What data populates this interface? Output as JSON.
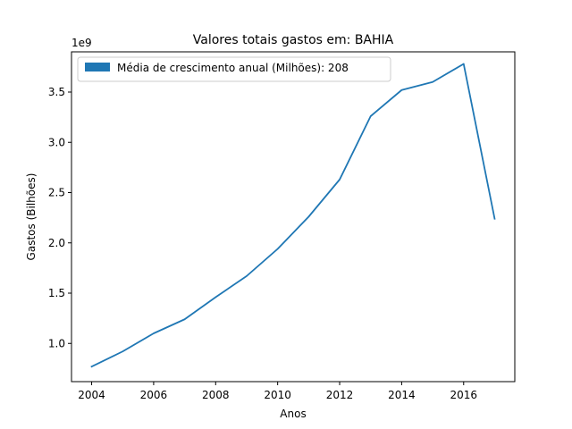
{
  "chart_data": {
    "type": "line",
    "title": "Valores totais gastos em: BAHIA",
    "xlabel": "Anos",
    "ylabel": "Gastos (Bilhões)",
    "y_offset_label": "1e9",
    "xlim": [
      2003.35,
      2017.65
    ],
    "ylim": [
      0.62,
      3.9
    ],
    "x_ticks": [
      2004,
      2006,
      2008,
      2010,
      2012,
      2014,
      2016
    ],
    "y_ticks": [
      1.0,
      1.5,
      2.0,
      2.5,
      3.0,
      3.5
    ],
    "y_tick_labels": [
      "1.0",
      "1.5",
      "2.0",
      "2.5",
      "3.0",
      "3.5"
    ],
    "grid": false,
    "legend": {
      "placement": "upper-left",
      "label": "Média de crescimento anual (Milhões): 208"
    },
    "series": [
      {
        "color": "#1f77b4",
        "x": [
          2004,
          2005,
          2006,
          2007,
          2008,
          2009,
          2010,
          2011,
          2012,
          2013,
          2014,
          2015,
          2016,
          2017
        ],
        "y": [
          0.77,
          0.92,
          1.1,
          1.24,
          1.46,
          1.67,
          1.94,
          2.26,
          2.63,
          3.26,
          3.52,
          3.6,
          3.78,
          2.24
        ]
      }
    ]
  }
}
